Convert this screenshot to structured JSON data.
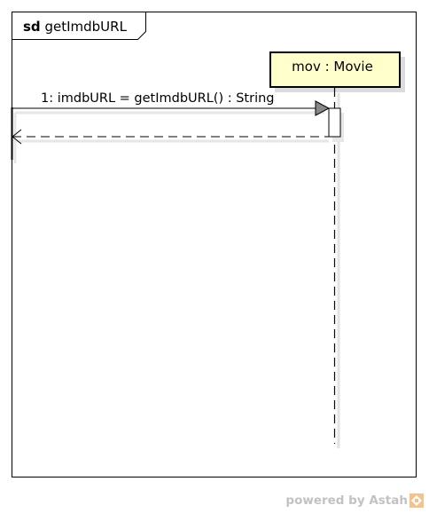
{
  "frame": {
    "keyword": "sd",
    "name": "getImdbURL"
  },
  "lifeline": {
    "label": "mov : Movie",
    "fill_color": "#ffffcc"
  },
  "message": {
    "label": "1: imdbURL = getImdbURL() : String"
  },
  "footer": {
    "text": "powered by Astah",
    "logo_color": "#f5c28a",
    "logo_icon": "astah-logo-icon"
  }
}
